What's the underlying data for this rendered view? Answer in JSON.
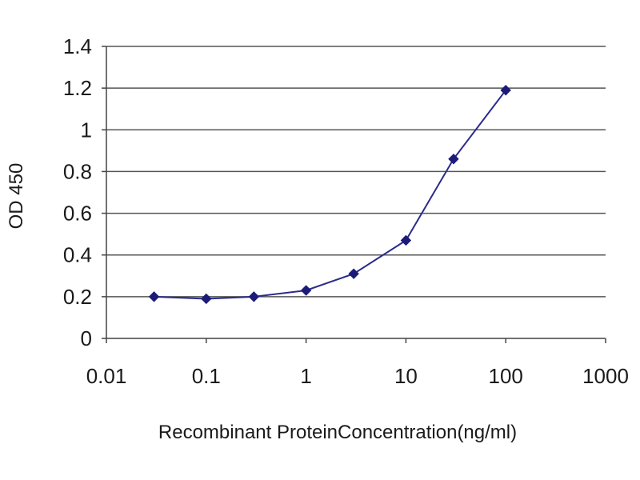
{
  "chart_data": {
    "type": "line",
    "title": "",
    "xlabel": "Recombinant  ProteinConcentration(ng/ml)",
    "ylabel": "OD 450",
    "x_scale": "log",
    "xlim": [
      0.01,
      1000
    ],
    "ylim": [
      0,
      1.4
    ],
    "x_ticks": [
      0.01,
      0.1,
      1,
      10,
      100,
      1000
    ],
    "x_tick_labels": [
      "0.01",
      "0.1",
      "1",
      "10",
      "100",
      "1000"
    ],
    "y_ticks": [
      0,
      0.2,
      0.4,
      0.6,
      0.8,
      1,
      1.2,
      1.4
    ],
    "y_tick_labels": [
      "0",
      "0.2",
      "0.4",
      "0.6",
      "0.8",
      "1",
      "1.2",
      "1.4"
    ],
    "grid": "horizontal",
    "legend": "none",
    "series": [
      {
        "x": [
          0.03,
          0.1,
          0.3,
          1,
          3,
          10,
          30,
          100
        ],
        "y": [
          0.2,
          0.19,
          0.2,
          0.23,
          0.31,
          0.47,
          0.86,
          1.19
        ],
        "color": "#2b2b8c",
        "marker": "diamond"
      }
    ]
  }
}
